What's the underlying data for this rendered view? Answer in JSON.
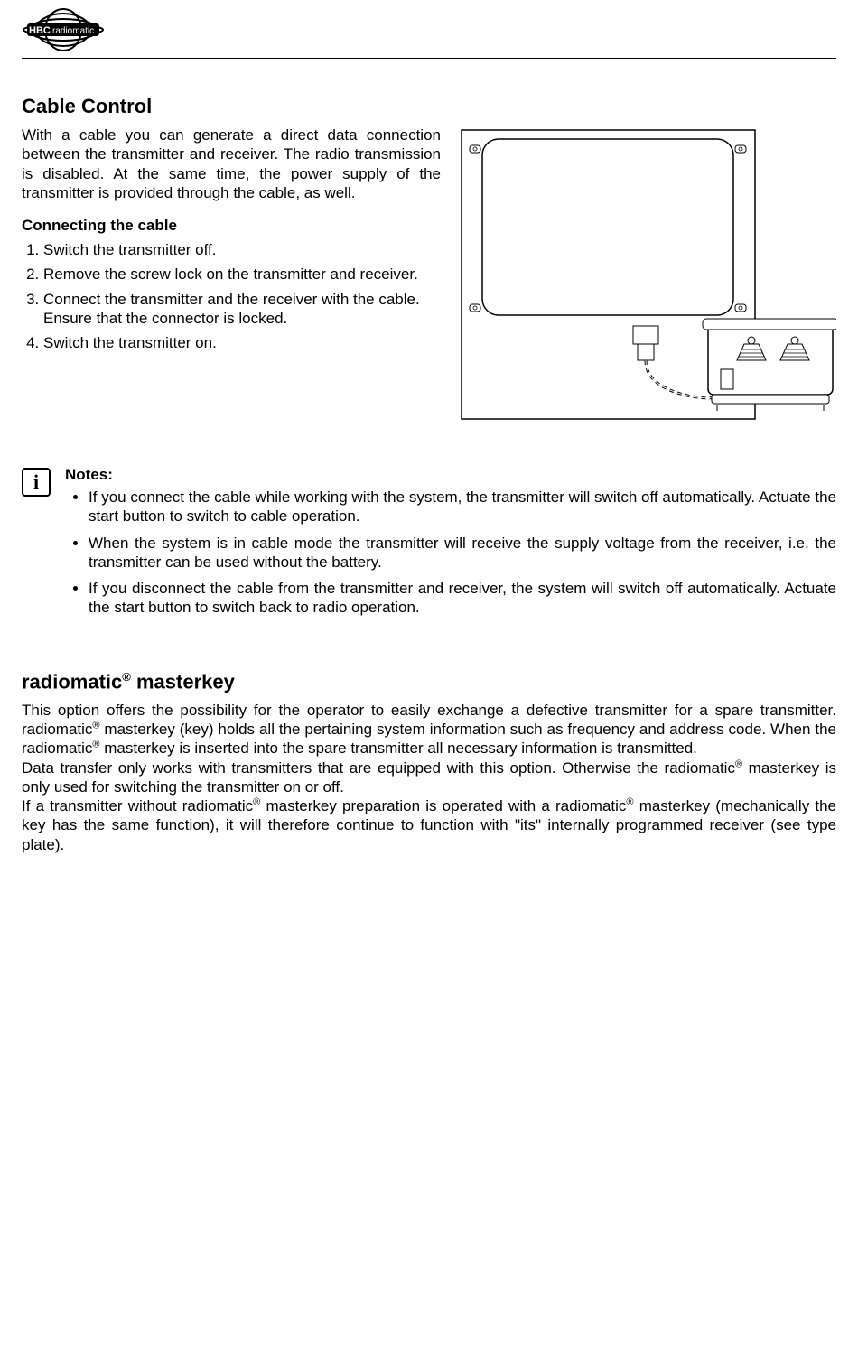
{
  "logo": {
    "brand_text": "radiomatic"
  },
  "cable_control": {
    "title": "Cable Control",
    "intro": "With a cable you can generate a direct data connection between the transmitter and receiver. The radio transmission is disabled. At the same time, the power supply of the transmitter is provided through the cable, as well.",
    "connecting_heading": "Connecting the cable",
    "steps": [
      "Switch the transmitter off.",
      "Remove the screw lock on the transmitter and receiver.",
      "Connect the transmitter and the receiver with the cable. Ensure that the connector is locked.",
      "Switch the transmitter on."
    ]
  },
  "notes": {
    "label": "Notes:",
    "items": [
      "If you connect the cable while working with the system, the transmitter will switch off automatically. Actuate the start button to switch to cable operation.",
      "When the system is in cable mode the transmitter will receive the supply voltage from the receiver, i.e. the transmitter can be used without the battery.",
      "If you disconnect the cable from the transmitter and receiver, the system will switch off automatically. Actuate the start button to switch back to radio operation."
    ]
  },
  "masterkey": {
    "title_pre": "radiomatic",
    "title_reg": "®",
    "title_post": " masterkey",
    "para1": "This option offers the possibility for the operator to easily exchange a defective transmitter for a spare transmitter. radiomatic® masterkey (key) holds all the pertaining system information such as frequency and address code. When the radiomatic® masterkey is inserted into the spare transmitter all necessary information is transmitted.",
    "para2": "Data transfer only works with transmitters that are equipped with this option. Otherwise the radiomatic® masterkey is only used for switching the transmitter on or off.",
    "para3": "If a transmitter without radiomatic® masterkey preparation is operated with a radiomatic® masterkey (mechanically the key has the same function), it will therefore continue to function with \"its\" internally programmed receiver (see type plate)."
  },
  "diagram": {
    "stroke": "#000000",
    "fill": "#ffffff"
  }
}
